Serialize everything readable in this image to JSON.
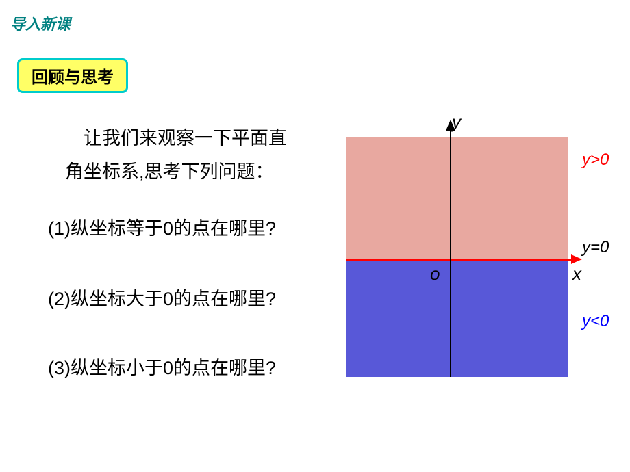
{
  "header": {
    "title": "导入新课"
  },
  "review_box": {
    "label": "回顾与思考"
  },
  "intro": {
    "line1": "让我们来观察一下平面直",
    "line2": "角坐标系,思考下列问题："
  },
  "questions": {
    "q1": "(1)纵坐标等于0的点在哪里?",
    "q2": "(2)纵坐标大于0的点在哪里?",
    "q3": "(3)纵坐标小于0的点在哪里?"
  },
  "diagram": {
    "type": "coordinate-plane",
    "upper_region_color": "#e8a8a0",
    "lower_region_color": "#5858d8",
    "x_axis_color": "#ff0000",
    "y_axis_color": "#000000",
    "background_color": "#ffffff",
    "labels": {
      "y_axis": "y",
      "x_axis": "x",
      "origin": "o",
      "y_positive": "y>0",
      "y_zero": "y=0",
      "y_negative": "y<0"
    },
    "label_colors": {
      "y_positive": "#ff0000",
      "y_zero": "#000000",
      "y_negative": "#0000ff"
    },
    "label_fontsize": 24,
    "axis_label_fontsize": 26
  },
  "colors": {
    "header_teal": "#008080",
    "box_yellow": "#ffff66",
    "box_border": "#00cccc"
  }
}
